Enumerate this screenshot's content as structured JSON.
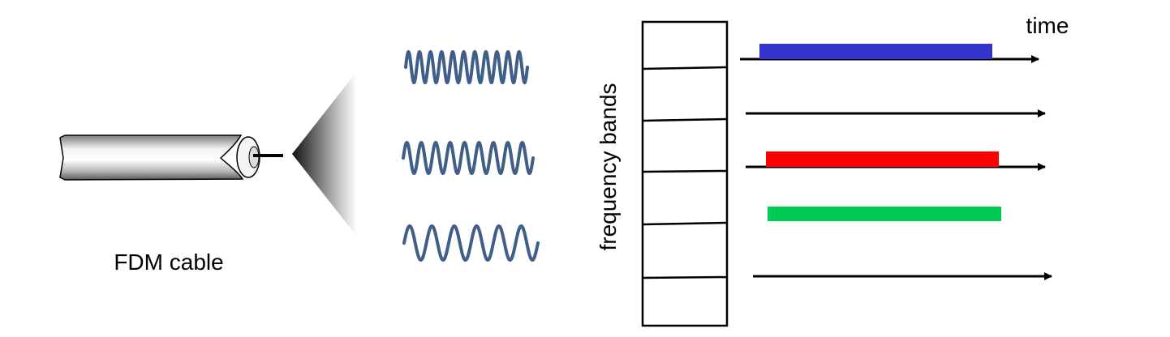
{
  "labels": {
    "cable": "FDM cable",
    "time_axis": "time",
    "frequency_axis": "frequency bands"
  },
  "colors": {
    "wave": "#3f5f8a",
    "band_blue": "#3333cc",
    "band_red": "#ff0000",
    "band_green": "#00cc55",
    "axis": "#000000"
  },
  "waves": [
    {
      "name": "wave-high-frequency",
      "cycles": 11
    },
    {
      "name": "wave-medium-frequency",
      "cycles": 9
    },
    {
      "name": "wave-low-frequency",
      "cycles": 6
    }
  ],
  "frequency_bands": {
    "count": 6
  },
  "band_signals": [
    {
      "name": "signal-blue",
      "color": "band_blue"
    },
    {
      "name": "signal-red",
      "color": "band_red"
    },
    {
      "name": "signal-green",
      "color": "band_green"
    }
  ]
}
